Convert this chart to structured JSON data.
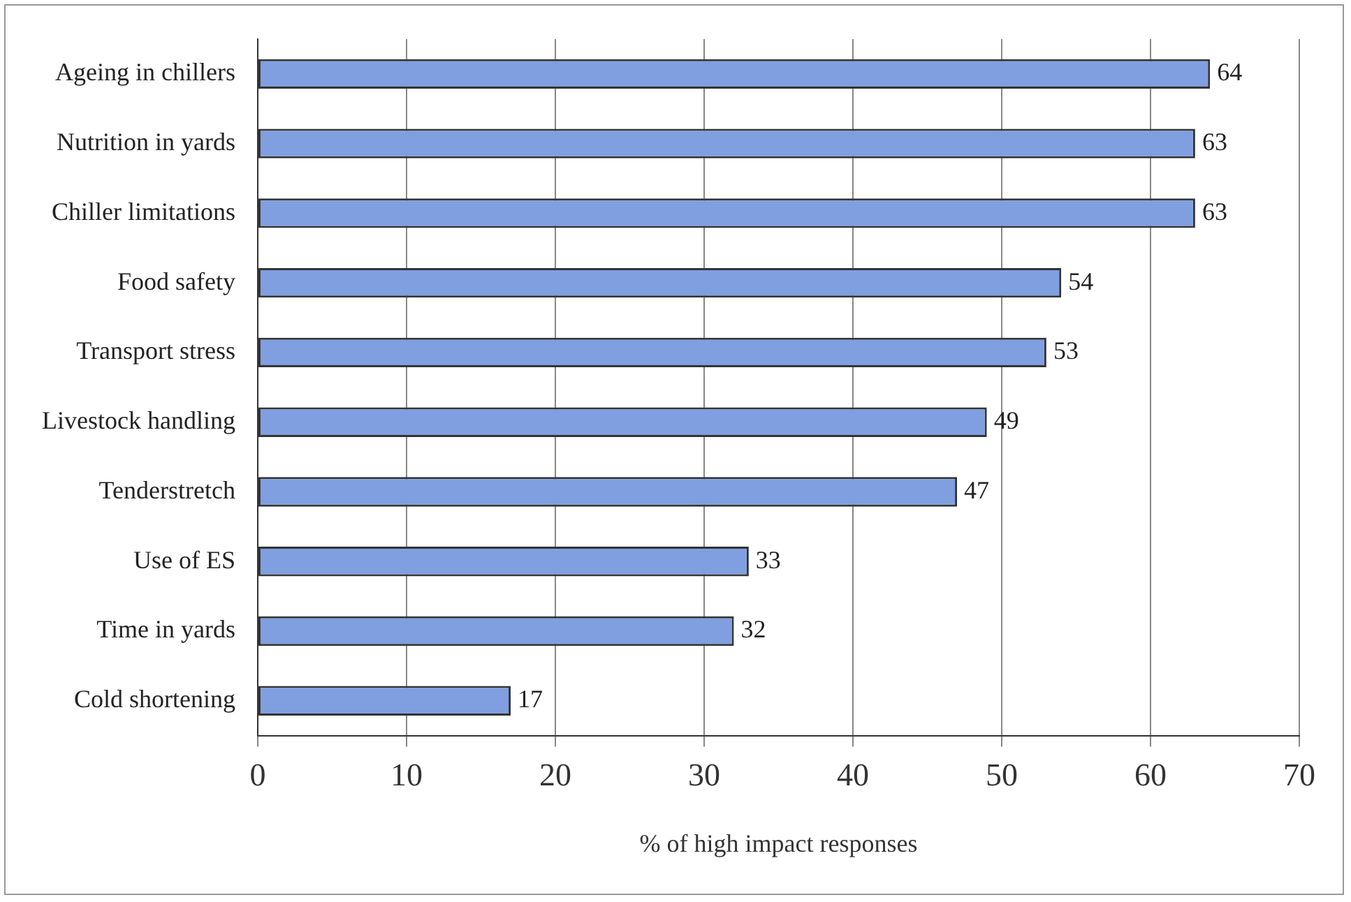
{
  "chart_data": {
    "type": "bar",
    "orientation": "horizontal",
    "xlabel": "% of high impact responses",
    "categories": [
      "Ageing in chillers",
      "Nutrition in yards",
      "Chiller limitations",
      "Food safety",
      "Transport stress",
      "Livestock handling",
      "Tenderstretch",
      "Use of ES",
      "Time in yards",
      "Cold shortening"
    ],
    "values": [
      64,
      63,
      63,
      54,
      53,
      49,
      47,
      33,
      32,
      17
    ],
    "color": "#7f9fe0",
    "xlim": [
      0,
      70
    ],
    "xticks": [
      0,
      10,
      20,
      30,
      40,
      50,
      60,
      70
    ],
    "grid": "x",
    "data_labels": true,
    "legend": false
  }
}
